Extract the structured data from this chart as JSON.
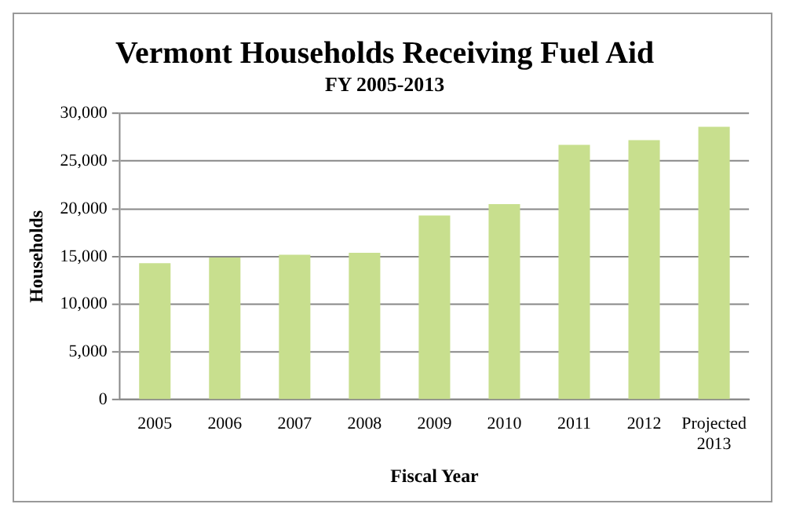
{
  "chart_data": {
    "type": "bar",
    "title": "Vermont Households Receiving Fuel Aid",
    "subtitle": "FY 2005-2013",
    "xlabel": "Fiscal Year",
    "ylabel": "Households",
    "categories": [
      "2005",
      "2006",
      "2007",
      "2008",
      "2009",
      "2010",
      "2011",
      "2012",
      "Projected 2013"
    ],
    "values": [
      14300,
      14900,
      15200,
      15400,
      19300,
      20500,
      26700,
      27200,
      28600
    ],
    "color": "#c8df8e",
    "ylim": [
      0,
      30000
    ],
    "yticks": [
      0,
      {
        "value": 5000,
        "label": "5,000"
      },
      {
        "value": 10000,
        "label": "10,000"
      },
      {
        "value": 15000,
        "label": "15,000"
      },
      {
        "value": 20000,
        "label": "20,000"
      },
      {
        "value": 25000,
        "label": "25,000"
      },
      {
        "value": 30000,
        "label": "30,000"
      }
    ],
    "grid": "y"
  }
}
